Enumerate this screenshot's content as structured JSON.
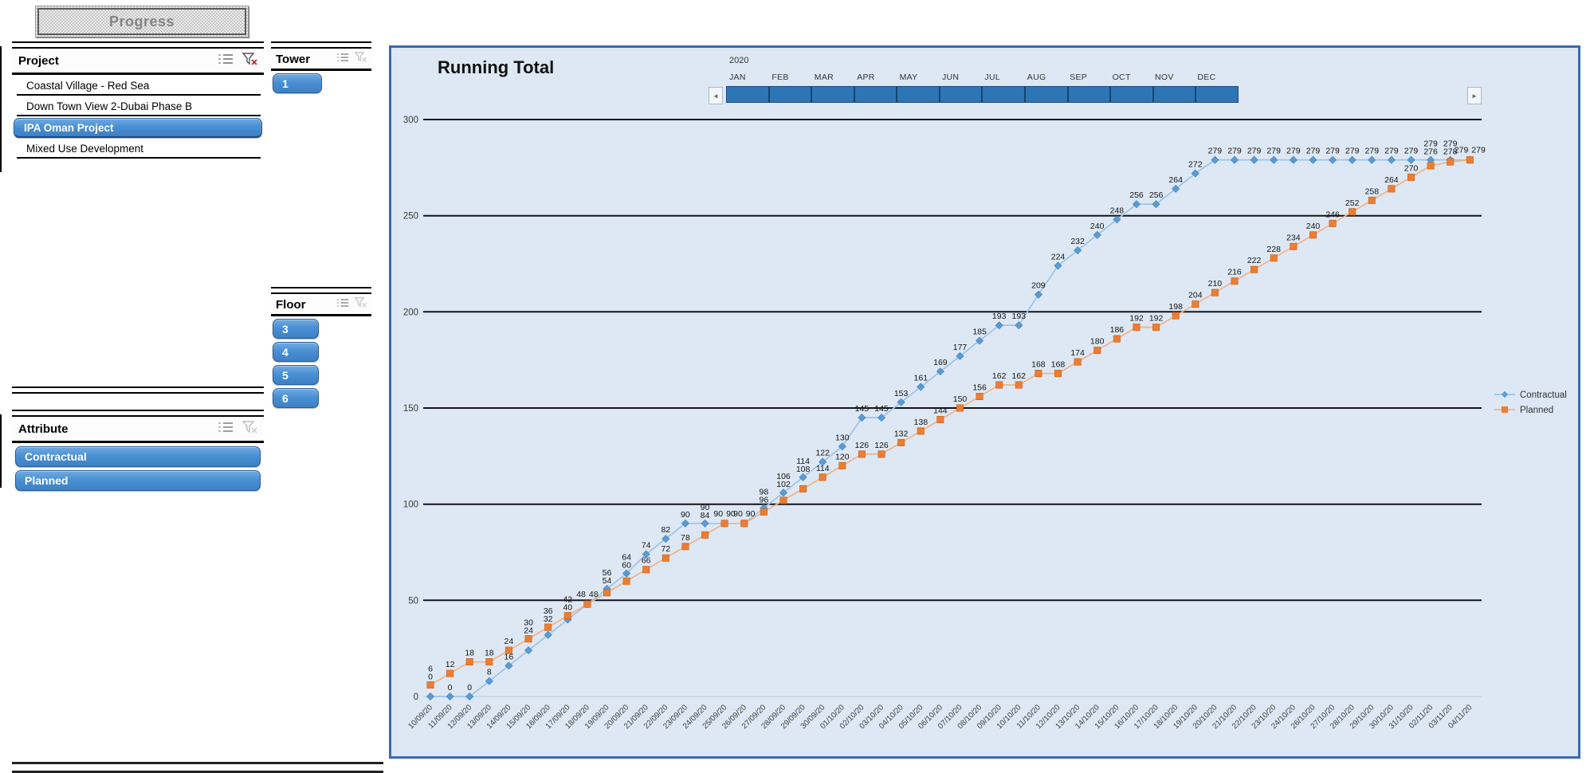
{
  "progress_button": {
    "label": "Progress"
  },
  "slicers": {
    "project": {
      "title": "Project",
      "icons": [
        "multi-select-icon",
        "clear-filter-icon"
      ],
      "clear_filter_enabled": true,
      "items": [
        {
          "label": "Coastal Village - Red Sea",
          "selected": false
        },
        {
          "label": "Down Town View 2-Dubai Phase B",
          "selected": false
        },
        {
          "label": "IPA Oman Project",
          "selected": true
        },
        {
          "label": "Mixed Use Development",
          "selected": false
        }
      ]
    },
    "tower": {
      "title": "Tower",
      "icons": [
        "multi-select-icon",
        "clear-filter-icon"
      ],
      "clear_filter_enabled": false,
      "items": [
        {
          "label": "1",
          "selected": true
        }
      ]
    },
    "floor": {
      "title": "Floor",
      "icons": [
        "multi-select-icon",
        "clear-filter-icon"
      ],
      "clear_filter_enabled": false,
      "items": [
        {
          "label": "3",
          "selected": true
        },
        {
          "label": "4",
          "selected": true
        },
        {
          "label": "5",
          "selected": true
        },
        {
          "label": "6",
          "selected": true
        }
      ]
    },
    "attribute": {
      "title": "Attribute",
      "icons": [
        "multi-select-icon",
        "clear-filter-icon"
      ],
      "clear_filter_enabled": false,
      "items": [
        {
          "label": "Contractual",
          "selected": true
        },
        {
          "label": "Planned",
          "selected": true
        }
      ]
    }
  },
  "timeline": {
    "year": "2020",
    "months": [
      "JAN",
      "FEB",
      "MAR",
      "APR",
      "MAY",
      "JUN",
      "JUL",
      "AUG",
      "SEP",
      "OCT",
      "NOV",
      "DEC"
    ],
    "left_arrow": "◄",
    "right_arrow": "►"
  },
  "chart_data": {
    "type": "line",
    "title": "Running Total",
    "grid": "horizontal",
    "legend_position": "right",
    "data_labels": true,
    "ylim": [
      0,
      300
    ],
    "yticks": [
      0,
      50,
      100,
      150,
      200,
      250,
      300
    ],
    "x": [
      "10/09/20",
      "11/09/20",
      "12/09/20",
      "13/09/20",
      "14/09/20",
      "15/09/20",
      "16/09/20",
      "17/09/20",
      "18/09/20",
      "19/09/20",
      "20/09/20",
      "21/09/20",
      "22/09/20",
      "23/09/20",
      "24/09/20",
      "25/09/20",
      "26/09/20",
      "27/09/20",
      "28/09/20",
      "29/09/20",
      "30/09/20",
      "01/10/20",
      "02/10/20",
      "03/10/20",
      "04/10/20",
      "05/10/20",
      "06/10/20",
      "07/10/20",
      "08/10/20",
      "09/10/20",
      "10/10/20",
      "11/10/20",
      "12/10/20",
      "13/10/20",
      "14/10/20",
      "15/10/20",
      "16/10/20",
      "17/10/20",
      "18/10/20",
      "19/10/20",
      "20/10/20",
      "21/10/20",
      "22/10/20",
      "23/10/20",
      "24/10/20",
      "26/10/20",
      "27/10/20",
      "28/10/20",
      "29/10/20",
      "30/10/20",
      "31/10/20",
      "02/11/20",
      "03/11/20",
      "04/11/20"
    ],
    "series": [
      {
        "name": "Contractual",
        "marker": "diamond",
        "marker_color": "#5b9bd5",
        "line_color": "#9dc3e6",
        "values": [
          0,
          0,
          0,
          8,
          16,
          24,
          32,
          40,
          48,
          56,
          64,
          74,
          82,
          90,
          90,
          90,
          90,
          98,
          106,
          114,
          122,
          130,
          145,
          145,
          153,
          161,
          169,
          177,
          185,
          193,
          193,
          209,
          224,
          232,
          240,
          248,
          256,
          256,
          264,
          272,
          279,
          279,
          279,
          279,
          279,
          279,
          279,
          279,
          279,
          279,
          279,
          279,
          279,
          279
        ]
      },
      {
        "name": "Planned",
        "marker": "square",
        "marker_color": "#ed7d31",
        "line_color": "#f4b183",
        "values": [
          6,
          12,
          18,
          18,
          24,
          30,
          36,
          42,
          48,
          54,
          60,
          66,
          72,
          78,
          84,
          90,
          90,
          96,
          102,
          108,
          114,
          120,
          126,
          126,
          132,
          138,
          144,
          150,
          156,
          162,
          162,
          168,
          168,
          174,
          180,
          186,
          192,
          192,
          198,
          204,
          210,
          216,
          222,
          228,
          234,
          240,
          246,
          252,
          258,
          264,
          270,
          276,
          278,
          279
        ]
      }
    ]
  }
}
